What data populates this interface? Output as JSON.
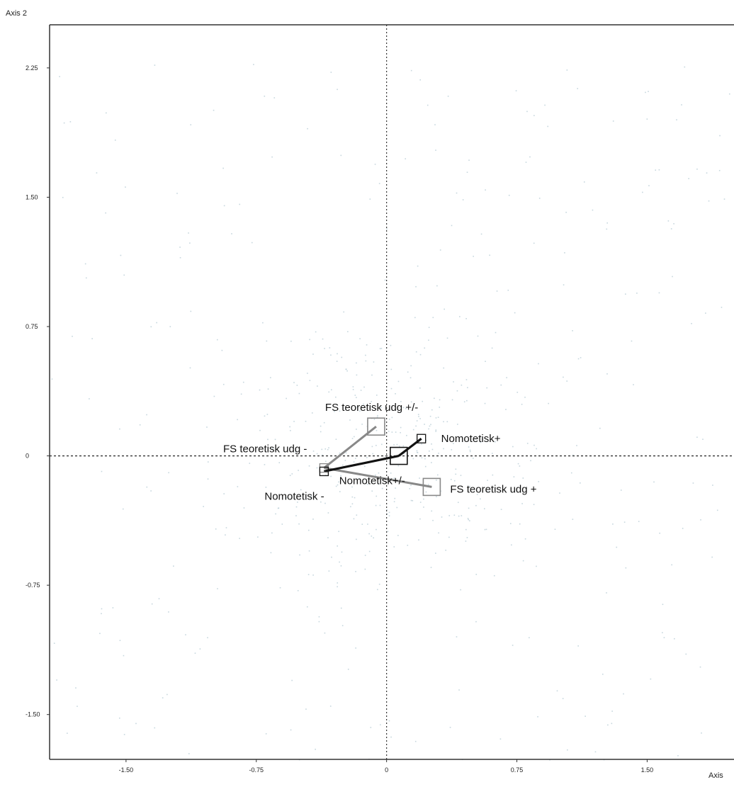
{
  "chart_data": {
    "type": "scatter",
    "title": "",
    "xlabel": "Axis",
    "ylabel": "Axis 2",
    "xlim": [
      -1.94,
      2.0
    ],
    "ylim": [
      -1.76,
      2.5
    ],
    "x_ticks": [
      {
        "value": -1.5,
        "label": "-1.50"
      },
      {
        "value": -0.75,
        "label": "-0.75"
      },
      {
        "value": 0,
        "label": "0"
      },
      {
        "value": 0.75,
        "label": "0.75"
      },
      {
        "value": 1.5,
        "label": "1.50"
      }
    ],
    "y_ticks": [
      {
        "value": 2.25,
        "label": "2.25"
      },
      {
        "value": 1.5,
        "label": "1.50"
      },
      {
        "value": 0.75,
        "label": "0.75"
      },
      {
        "value": 0,
        "label": "0"
      },
      {
        "value": -0.75,
        "label": "-0.75"
      },
      {
        "value": -1.5,
        "label": "-1.50"
      }
    ],
    "grid": false,
    "reference_lines": {
      "x": 0,
      "y": 0
    },
    "series": [
      {
        "color": "#888888",
        "points": [
          {
            "label": "FS teoretisk udg +/-",
            "x": -0.06,
            "y": 0.17,
            "size": "large"
          },
          {
            "label": "FS teoretisk udg -",
            "x": -0.36,
            "y": -0.07,
            "size": "small"
          },
          {
            "label": "FS teoretisk udg +",
            "x": 0.26,
            "y": -0.18,
            "size": "large"
          }
        ]
      },
      {
        "color": "#111111",
        "points": [
          {
            "label": "Nomotetisk+",
            "x": 0.2,
            "y": 0.1,
            "size": "small"
          },
          {
            "label": "Nomotetisk+/-",
            "x": 0.07,
            "y": 0.0,
            "size": "large"
          },
          {
            "label": "Nomotetisk -",
            "x": -0.36,
            "y": -0.09,
            "size": "small"
          }
        ]
      }
    ],
    "background_points_color": "#b9cdd6"
  }
}
